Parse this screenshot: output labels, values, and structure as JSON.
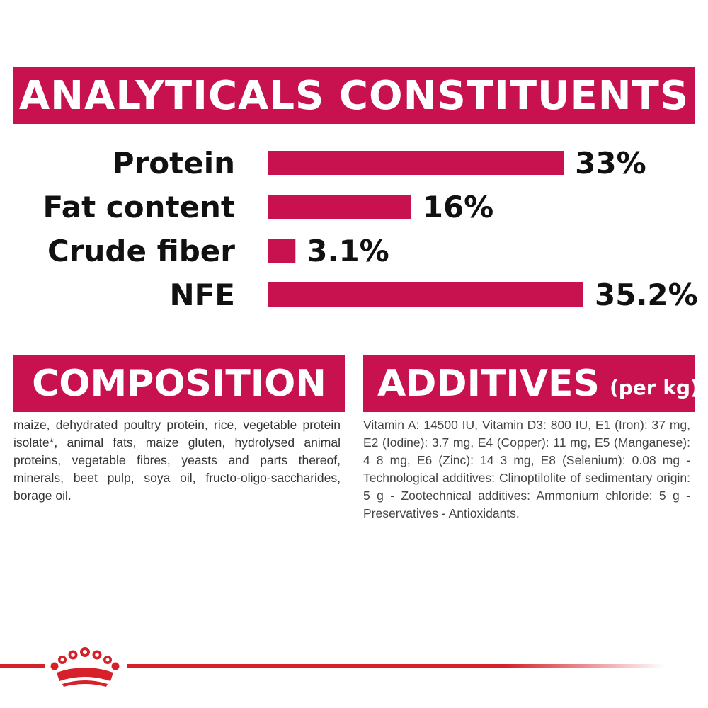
{
  "analytics": {
    "heading": "ANALYTICALS CONSTITUENTS"
  },
  "chart_data": {
    "type": "bar",
    "orientation": "horizontal",
    "categories": [
      "Protein",
      "Fat content",
      "Crude fiber",
      "NFE"
    ],
    "values": [
      33,
      16,
      3.1,
      35.2
    ],
    "value_labels": [
      "33%",
      "16%",
      "3.1%",
      "35.2%"
    ],
    "unit": "%",
    "xlim": [
      0,
      35.2
    ],
    "grid": false,
    "legend": "none",
    "bar_color": "#c8124f"
  },
  "composition": {
    "heading": "COMPOSITION",
    "text": "maize, dehydrated poultry protein, rice, vegetable protein isolate*, animal fats, maize gluten, hydrolysed animal proteins, vegetable fibres, yeasts and parts thereof, minerals, beet pulp, soya oil, fructo-oligo-saccharides, borage oil."
  },
  "additives": {
    "heading": "ADDITIVES",
    "subheading": "(per kg)",
    "text": "Vitamin A: 14500 IU, Vitamin D3: 800 IU, E1 (Iron): 37 mg, E2 (Iodine): 3.7 mg, E4 (Copper): 11 mg, E5 (Manganese): 4 8 mg, E6 (Zinc): 14 3 mg, E8 (Selenium): 0.08 mg -Technological additives: Clinoptilolite of sedimentary origin: 5 g - Zootechnical additives: Ammonium chloride: 5 g - Preservatives - Antioxidants."
  },
  "footer": {
    "logo_icon": "crown-icon",
    "line_color": "#d6202a"
  }
}
